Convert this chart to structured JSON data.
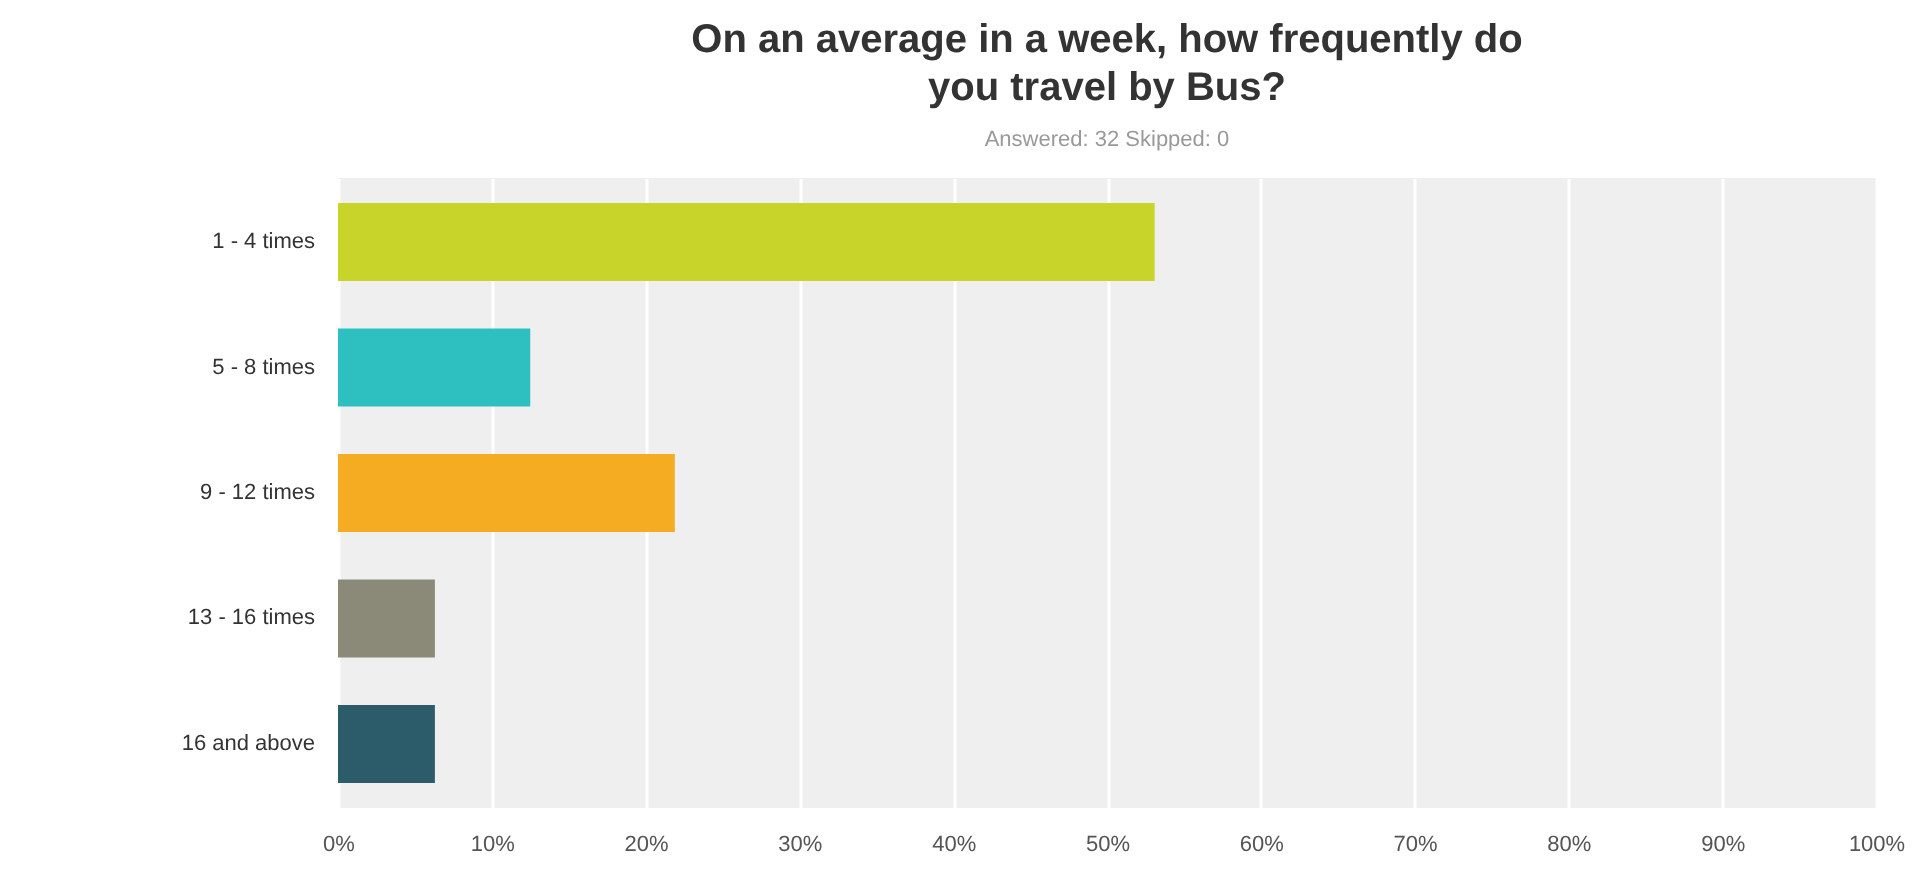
{
  "chart_data": {
    "type": "bar",
    "orientation": "horizontal",
    "title": "On an average in a week, how frequently do you travel by Bus?",
    "subtitle": "Answered: 32    Skipped: 0",
    "categories": [
      "1 - 4 times",
      "5 - 8 times",
      "9 - 12 times",
      "13 - 16 times",
      "16 and above"
    ],
    "values": [
      53.1,
      12.5,
      21.9,
      6.3,
      6.3
    ],
    "colors": [
      "#c9d42b",
      "#2ebfc1",
      "#f5ab22",
      "#8b8a78",
      "#2c5b69"
    ],
    "xlim": [
      0,
      100
    ],
    "xticks": [
      {
        "value": 0,
        "label": "0%"
      },
      {
        "value": 10,
        "label": "10%"
      },
      {
        "value": 20,
        "label": "20%"
      },
      {
        "value": 30,
        "label": "30%"
      },
      {
        "value": 40,
        "label": "40%"
      },
      {
        "value": 50,
        "label": "50%"
      },
      {
        "value": 60,
        "label": "60%"
      },
      {
        "value": 70,
        "label": "70%"
      },
      {
        "value": 80,
        "label": "80%"
      },
      {
        "value": 90,
        "label": "90%"
      },
      {
        "value": 100,
        "label": "100%"
      }
    ],
    "grid": "x"
  }
}
